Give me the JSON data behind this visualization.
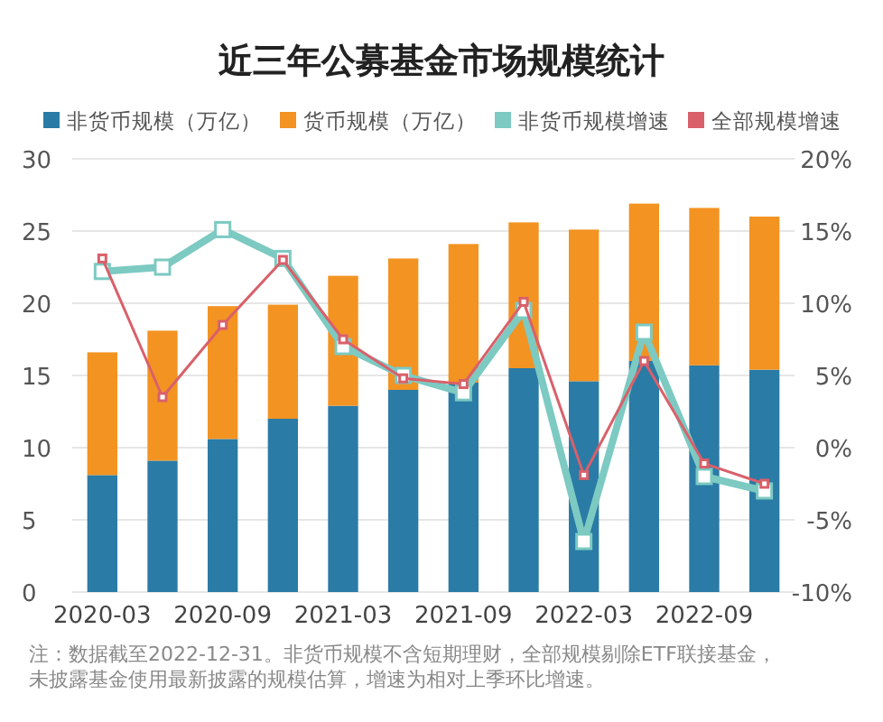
{
  "chart_data": {
    "type": "bar",
    "stacked": true,
    "title": "近三年公募基金市场规模统计",
    "categories": [
      "2020-03",
      null,
      "2020-09",
      null,
      "2021-03",
      null,
      "2021-09",
      null,
      "2022-03",
      null,
      "2022-09",
      null
    ],
    "series": [
      {
        "name": "非货币规模（万亿）",
        "color": "#2a7ba6",
        "values": [
          8.1,
          9.1,
          10.6,
          12.0,
          12.9,
          14.0,
          14.5,
          15.5,
          14.6,
          16.0,
          15.7,
          15.4
        ]
      },
      {
        "name": "货币规模（万亿）",
        "color": "#f39322",
        "values": [
          8.5,
          9.0,
          9.2,
          7.9,
          9.0,
          9.1,
          9.6,
          10.1,
          10.5,
          10.9,
          10.9,
          10.6
        ]
      },
      {
        "name": "非货币规模增速",
        "type": "line",
        "axis": "y2",
        "color": "#7ccac2",
        "values": [
          12.2,
          12.5,
          15.1,
          13.1,
          7.0,
          5.0,
          3.8,
          9.5,
          -6.5,
          8.0,
          -2.0,
          -3.0
        ]
      },
      {
        "name": "全部规模增速",
        "type": "line",
        "axis": "y2",
        "color": "#d9606a",
        "values": [
          13.1,
          3.5,
          8.5,
          13.0,
          7.5,
          4.8,
          4.4,
          10.1,
          -1.9,
          6.0,
          -1.1,
          -2.5
        ]
      }
    ],
    "ylim": [
      0,
      30
    ],
    "yticks": [
      0,
      5,
      10,
      15,
      20,
      25,
      30
    ],
    "y2lim": [
      -10,
      20
    ],
    "y2ticks": [
      {
        "value": -10,
        "label": "-10%"
      },
      {
        "value": -5,
        "label": "-5%"
      },
      {
        "value": 0,
        "label": "0%"
      },
      {
        "value": 5,
        "label": "5%"
      },
      {
        "value": 10,
        "label": "10%"
      },
      {
        "value": 15,
        "label": "15%"
      },
      {
        "value": 20,
        "label": "20%"
      }
    ],
    "grid": "y",
    "legend": "top",
    "marker": "square",
    "annotations": [
      "注：数据截至2022-12-31。非货币规模不含短期理财，全部规模剔除ETF联接基金，",
      "未披露基金使用最新披露的规模估算，增速为相对上季环比增速。"
    ]
  }
}
